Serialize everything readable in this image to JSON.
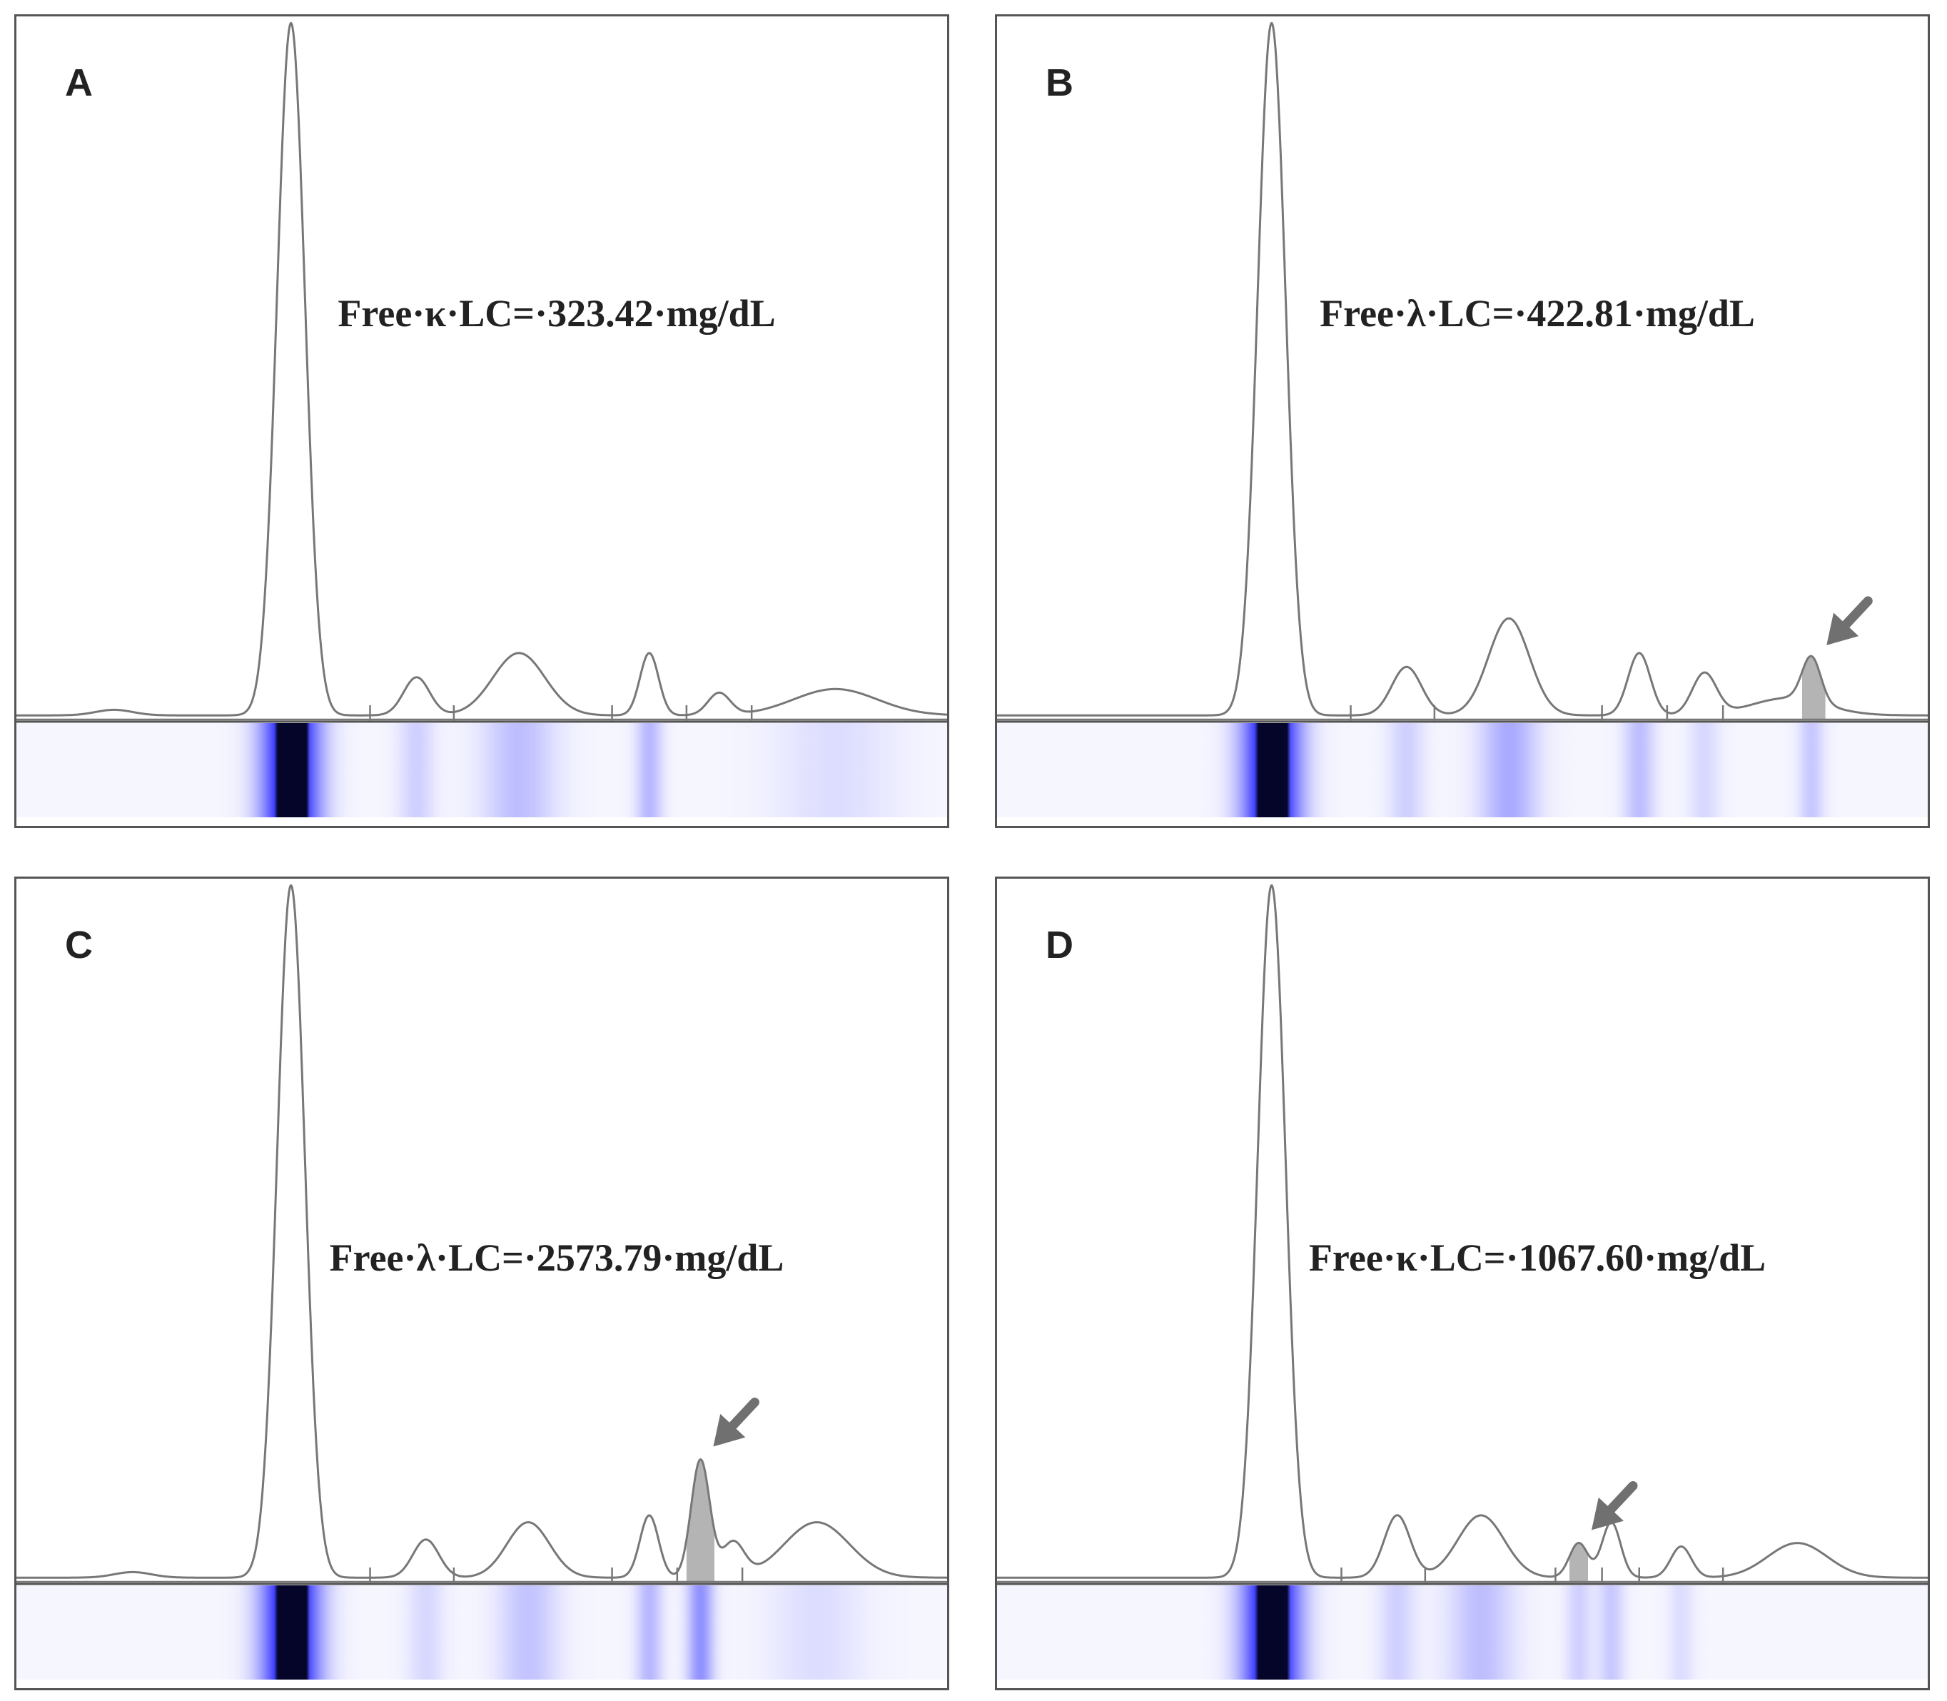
{
  "chart_data": [
    {
      "type": "line",
      "panel": "A",
      "annotation": "Free·κ·LC=·323.42·mg/dL",
      "x_range": [
        0,
        100
      ],
      "dividers": [
        38,
        47,
        64,
        72,
        79
      ],
      "peaks": [
        {
          "center": 29.5,
          "height": 100,
          "width": 1.5
        },
        {
          "center": 10.5,
          "height": 0.8,
          "width": 2.0
        },
        {
          "center": 43,
          "height": 5.5,
          "width": 1.4
        },
        {
          "center": 54,
          "height": 9,
          "width": 2.8
        },
        {
          "center": 68,
          "height": 9,
          "width": 1.0
        },
        {
          "center": 75.5,
          "height": 3.2,
          "width": 1.2
        },
        {
          "center": 88,
          "height": 3.8,
          "width": 4.5
        }
      ],
      "highlight": null,
      "arrow": false,
      "gel_bands": [
        {
          "center": 29.5,
          "intensity": 1.0,
          "width": 2.2
        },
        {
          "center": 43,
          "intensity": 0.15,
          "width": 1.4
        },
        {
          "center": 54,
          "intensity": 0.22,
          "width": 2.8
        },
        {
          "center": 68,
          "intensity": 0.25,
          "width": 1.0
        },
        {
          "center": 88,
          "intensity": 0.1,
          "width": 4.5
        }
      ]
    },
    {
      "type": "line",
      "panel": "B",
      "annotation": "Free·λ·LC=·422.81·mg/dL",
      "x_range": [
        0,
        100
      ],
      "dividers": [
        38,
        47,
        65,
        72,
        78
      ],
      "peaks": [
        {
          "center": 29.5,
          "height": 100,
          "width": 1.5
        },
        {
          "center": 44,
          "height": 7,
          "width": 1.6
        },
        {
          "center": 55,
          "height": 14,
          "width": 2.2
        },
        {
          "center": 69,
          "height": 9,
          "width": 1.2
        },
        {
          "center": 76,
          "height": 6,
          "width": 1.3
        },
        {
          "center": 87.5,
          "height": 6.5,
          "width": 1.0
        },
        {
          "center": 85,
          "height": 2.5,
          "width": 4.0
        }
      ],
      "highlight": [
        86.5,
        89
      ],
      "arrow": true,
      "gel_bands": [
        {
          "center": 29.5,
          "intensity": 1.0,
          "width": 2.2
        },
        {
          "center": 44,
          "intensity": 0.15,
          "width": 1.4
        },
        {
          "center": 55,
          "intensity": 0.3,
          "width": 2.2
        },
        {
          "center": 69,
          "intensity": 0.22,
          "width": 1.2
        },
        {
          "center": 76,
          "intensity": 0.12,
          "width": 1.2
        },
        {
          "center": 87.5,
          "intensity": 0.18,
          "width": 1.0
        }
      ]
    },
    {
      "type": "line",
      "panel": "C",
      "annotation": "Free·λ·LC=·2573.79·mg/dL",
      "x_range": [
        0,
        100
      ],
      "dividers": [
        38,
        47,
        64,
        71,
        78
      ],
      "peaks": [
        {
          "center": 29.5,
          "height": 100,
          "width": 1.5
        },
        {
          "center": 12.5,
          "height": 0.8,
          "width": 2.0
        },
        {
          "center": 44,
          "height": 5.5,
          "width": 1.4
        },
        {
          "center": 55,
          "height": 8,
          "width": 2.3
        },
        {
          "center": 68,
          "height": 9,
          "width": 1.0
        },
        {
          "center": 73.5,
          "height": 17,
          "width": 1.0
        },
        {
          "center": 77,
          "height": 5,
          "width": 1.2
        },
        {
          "center": 86,
          "height": 8,
          "width": 3.5
        }
      ],
      "highlight": [
        72,
        75
      ],
      "arrow": true,
      "gel_bands": [
        {
          "center": 29.5,
          "intensity": 1.0,
          "width": 2.2
        },
        {
          "center": 44,
          "intensity": 0.12,
          "width": 1.4
        },
        {
          "center": 55,
          "intensity": 0.2,
          "width": 2.3
        },
        {
          "center": 68,
          "intensity": 0.25,
          "width": 1.0
        },
        {
          "center": 73.5,
          "intensity": 0.4,
          "width": 1.0
        },
        {
          "center": 86,
          "intensity": 0.1,
          "width": 3.5
        }
      ]
    },
    {
      "type": "line",
      "panel": "D",
      "annotation": "Free·κ·LC=·1067.60·mg/dL",
      "x_range": [
        0,
        100
      ],
      "dividers": [
        37,
        46,
        60,
        65,
        69,
        78
      ],
      "peaks": [
        {
          "center": 29.5,
          "height": 100,
          "width": 1.5
        },
        {
          "center": 43,
          "height": 9,
          "width": 1.4
        },
        {
          "center": 52,
          "height": 9,
          "width": 2.5
        },
        {
          "center": 62.5,
          "height": 5,
          "width": 1.0
        },
        {
          "center": 66,
          "height": 8,
          "width": 1.0
        },
        {
          "center": 73.5,
          "height": 4.5,
          "width": 1.1
        },
        {
          "center": 86,
          "height": 5,
          "width": 3.2
        }
      ],
      "highlight": [
        61.5,
        63.5
      ],
      "arrow": true,
      "gel_bands": [
        {
          "center": 29.5,
          "intensity": 1.0,
          "width": 2.2
        },
        {
          "center": 43,
          "intensity": 0.15,
          "width": 1.4
        },
        {
          "center": 52,
          "intensity": 0.22,
          "width": 2.5
        },
        {
          "center": 62.5,
          "intensity": 0.15,
          "width": 1.0
        },
        {
          "center": 66,
          "intensity": 0.18,
          "width": 1.0
        },
        {
          "center": 73.5,
          "intensity": 0.1,
          "width": 1.0
        }
      ]
    }
  ],
  "colors": {
    "trace": "#777777",
    "highlight": "#b4b4b4",
    "arrow": "#707070",
    "gel_background": "#f6f6ff",
    "gel_band": "#3838ff",
    "gel_core": "#05052a"
  }
}
